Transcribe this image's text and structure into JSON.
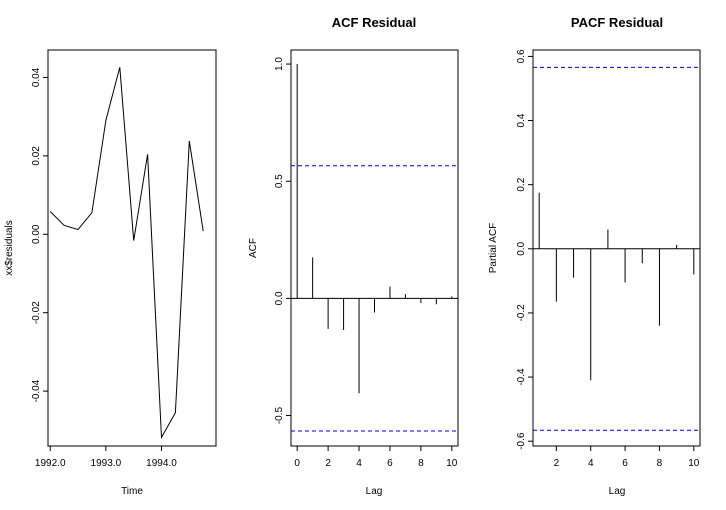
{
  "chart_data": [
    {
      "type": "line",
      "title": "",
      "xlabel": "Time",
      "ylabel": "xx$residuals",
      "xlim": [
        1991.96,
        1994.98
      ],
      "ylim": [
        -0.054,
        0.047
      ],
      "x_ticks": [
        1992.0,
        1993.0,
        1994.0
      ],
      "x_tick_labels": [
        "1992.0",
        "1993.0",
        "1994.0"
      ],
      "y_ticks": [
        -0.04,
        -0.02,
        0.0,
        0.02,
        0.04
      ],
      "y_tick_labels": [
        "-0.04",
        "-0.02",
        "0.00",
        "0.02",
        "0.04"
      ],
      "x": [
        1992.0,
        1992.25,
        1992.5,
        1992.75,
        1993.0,
        1993.25,
        1993.5,
        1993.75,
        1994.0,
        1994.25,
        1994.5,
        1994.75
      ],
      "y": [
        0.0058,
        0.0023,
        0.0012,
        0.0055,
        0.0291,
        0.0426,
        -0.0016,
        0.0204,
        -0.0518,
        -0.0455,
        0.0238,
        0.0008
      ],
      "grid": false,
      "color": "#000000"
    },
    {
      "type": "bar",
      "title": "ACF Residual",
      "xlabel": "Lag",
      "ylabel": "ACF",
      "xlim": [
        -0.4,
        10.4
      ],
      "ylim": [
        -0.63,
        1.06
      ],
      "x_ticks": [
        0,
        2,
        4,
        6,
        8,
        10
      ],
      "x_tick_labels": [
        "0",
        "2",
        "4",
        "6",
        "8",
        "10"
      ],
      "y_ticks": [
        -0.5,
        0.0,
        0.5,
        1.0
      ],
      "y_tick_labels": [
        "-0.5",
        "0.0",
        "0.5",
        "1.0"
      ],
      "lags": [
        0,
        1,
        2,
        3,
        4,
        5,
        6,
        7,
        8,
        9,
        10
      ],
      "values": [
        1.0,
        0.175,
        -0.13,
        -0.135,
        -0.405,
        -0.06,
        0.05,
        0.018,
        -0.02,
        -0.025,
        0.008
      ],
      "confidence_bounds": [
        0.566,
        -0.566
      ],
      "bound_color": "#0000cc",
      "grid": false
    },
    {
      "type": "bar",
      "title": "PACF Residual",
      "xlabel": "Lag",
      "ylabel": "Partial ACF",
      "xlim": [
        0.64,
        10.36
      ],
      "ylim": [
        -0.615,
        0.62
      ],
      "x_ticks": [
        2,
        4,
        6,
        8,
        10
      ],
      "x_tick_labels": [
        "2",
        "4",
        "6",
        "8",
        "10"
      ],
      "y_ticks": [
        -0.6,
        -0.4,
        -0.2,
        0.0,
        0.2,
        0.4,
        0.6
      ],
      "y_tick_labels": [
        "-0.6",
        "-0.4",
        "-0.2",
        "0.0",
        "0.2",
        "0.4",
        "0.6"
      ],
      "lags": [
        1,
        2,
        3,
        4,
        5,
        6,
        7,
        8,
        9,
        10
      ],
      "values": [
        0.175,
        -0.165,
        -0.09,
        -0.41,
        0.06,
        -0.105,
        -0.045,
        -0.24,
        0.012,
        -0.08
      ],
      "confidence_bounds": [
        0.566,
        -0.566
      ],
      "bound_color": "#0000cc",
      "grid": false
    }
  ]
}
